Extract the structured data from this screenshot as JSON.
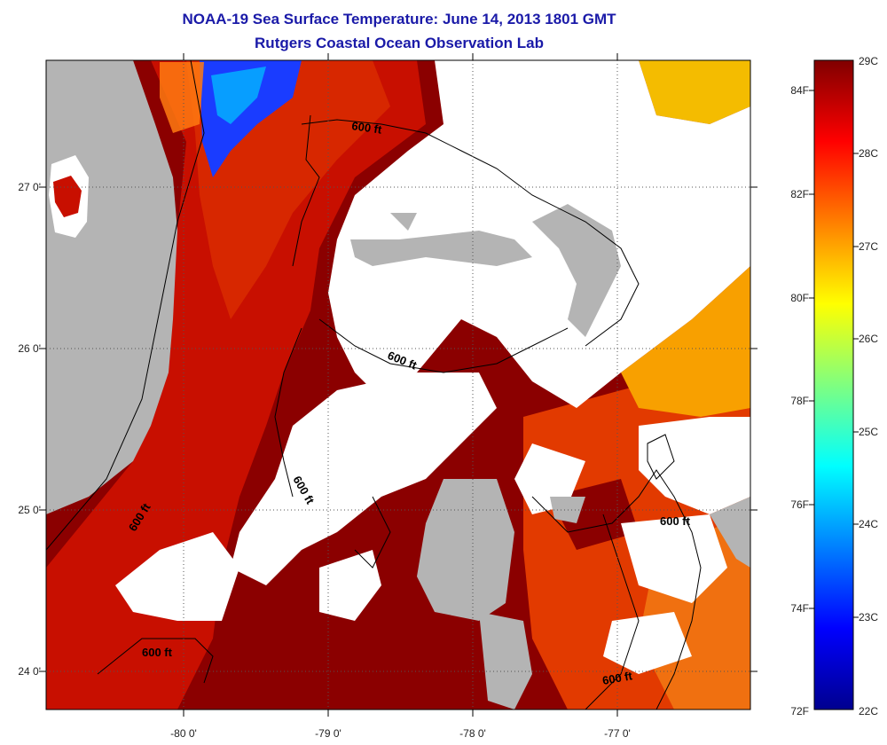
{
  "header": {
    "title": "NOAA-19 Sea Surface Temperature:  June 14, 2013 1801 GMT",
    "subtitle": "Rutgers Coastal Ocean Observation Lab"
  },
  "map": {
    "latitude_labels": [
      "27 0'",
      "26 0'",
      "25 0'",
      "24 0'"
    ],
    "longitude_labels": [
      "-80 0'",
      "-79 0'",
      "-78 0'",
      "-77 0'"
    ],
    "contour_labels": [
      "600 ft",
      "600 ft",
      "600 ft",
      "600 ft",
      "600 ft",
      "600 ft"
    ],
    "colors": {
      "land": "#b4b4b4",
      "cloud": "#ffffff",
      "warm_water": "#8b0000",
      "mid_water": "#d62000",
      "cool_water": "#ff8c00"
    }
  },
  "colorbar": {
    "fahrenheit_labels": [
      "84F",
      "82F",
      "80F",
      "78F",
      "76F",
      "74F",
      "72F"
    ],
    "celsius_labels": [
      "29C",
      "28C",
      "27C",
      "26C",
      "25C",
      "24C",
      "23C",
      "22C"
    ],
    "range_celsius": [
      22,
      29
    ],
    "colormap": "jet"
  }
}
